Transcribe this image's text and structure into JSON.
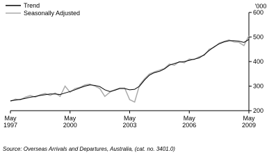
{
  "chart_data": {
    "type": "line",
    "y_unit": "'000",
    "footnote": "Source: Overseas Arrivals and Departures, Australia, (cat. no. 3401.0)",
    "x": [
      1997.33,
      1997.58,
      1997.83,
      1998.08,
      1998.33,
      1998.58,
      1998.83,
      1999.08,
      1999.33,
      1999.58,
      1999.83,
      2000.08,
      2000.33,
      2000.58,
      2000.83,
      2001.08,
      2001.33,
      2001.58,
      2001.83,
      2002.08,
      2002.33,
      2002.58,
      2002.83,
      2003.08,
      2003.33,
      2003.58,
      2003.83,
      2004.08,
      2004.33,
      2004.58,
      2004.83,
      2005.08,
      2005.33,
      2005.58,
      2005.83,
      2006.08,
      2006.33,
      2006.58,
      2006.83,
      2007.08,
      2007.33,
      2007.58,
      2007.83,
      2008.08,
      2008.33,
      2008.58,
      2008.83,
      2009.08,
      2009.33
    ],
    "series": [
      {
        "name": "Trend",
        "color": "#000000",
        "values": [
          240,
          243,
          246,
          250,
          255,
          258,
          262,
          265,
          268,
          268,
          266,
          272,
          278,
          285,
          293,
          300,
          305,
          303,
          298,
          285,
          278,
          283,
          290,
          290,
          285,
          287,
          300,
          325,
          345,
          355,
          360,
          370,
          385,
          392,
          398,
          400,
          405,
          410,
          415,
          428,
          445,
          460,
          472,
          480,
          485,
          485,
          483,
          478,
          490
        ]
      },
      {
        "name": "Seasonally Adjusted",
        "color": "#aaaaaa",
        "values": [
          238,
          247,
          244,
          255,
          262,
          255,
          265,
          270,
          262,
          272,
          258,
          300,
          275,
          290,
          295,
          305,
          308,
          300,
          290,
          258,
          275,
          285,
          292,
          292,
          245,
          235,
          305,
          330,
          350,
          358,
          365,
          372,
          390,
          385,
          400,
          395,
          410,
          408,
          420,
          425,
          450,
          458,
          475,
          482,
          488,
          480,
          478,
          465,
          505
        ]
      }
    ],
    "xlim": [
      1997.33,
      2009.33
    ],
    "xticks": [
      {
        "value": 1997.33,
        "label": "May 1997"
      },
      {
        "value": 2000.33,
        "label": "May 2000"
      },
      {
        "value": 2003.33,
        "label": "May 2003"
      },
      {
        "value": 2006.33,
        "label": "May 2006"
      },
      {
        "value": 2009.33,
        "label": "May 2009"
      }
    ],
    "ylim": [
      200,
      600
    ],
    "yticks": [
      200,
      300,
      400,
      500,
      600
    ],
    "legend": "top-left"
  }
}
